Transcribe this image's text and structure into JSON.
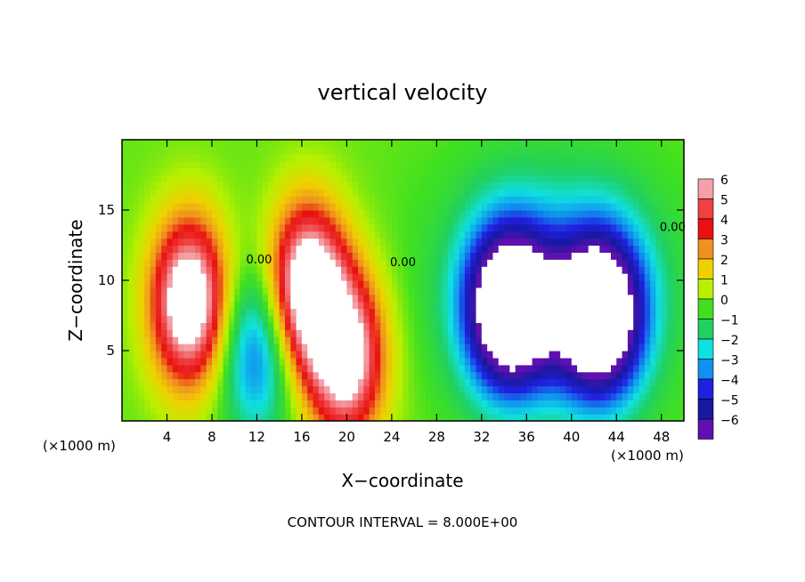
{
  "chart_data": {
    "type": "heatmap",
    "title": "vertical velocity",
    "xlabel": "X−coordinate",
    "ylabel": "Z−coordinate",
    "x_unit_left": "(×1000 m)",
    "x_unit_right": "(×1000 m)",
    "footer": "CONTOUR INTERVAL = 8.000E+00",
    "xlim": [
      0,
      50
    ],
    "ylim": [
      0,
      20
    ],
    "x_ticks": [
      4,
      8,
      12,
      16,
      20,
      24,
      28,
      32,
      36,
      40,
      44,
      48
    ],
    "x_tick_labels": [
      "4",
      "8",
      "12",
      "16",
      "20",
      "24",
      "28",
      "32",
      "36",
      "40",
      "44",
      "48"
    ],
    "y_ticks": [
      5,
      10,
      15
    ],
    "y_tick_labels": [
      "5",
      "10",
      "15"
    ],
    "colorbar": {
      "levels": [
        6,
        5,
        4,
        3,
        2,
        1,
        0,
        -1,
        -2,
        -3,
        -4,
        -5,
        -6
      ],
      "labels": [
        "6",
        "5",
        "4",
        "3",
        "2",
        "1",
        "0",
        "−1",
        "−2",
        "−3",
        "−4",
        "−5",
        "−6"
      ],
      "colors": [
        "#f4a0a8",
        "#f04040",
        "#e81010",
        "#f09020",
        "#f0d000",
        "#b8f000",
        "#40e020",
        "#20d060",
        "#10e0e0",
        "#1090f0",
        "#2020e0",
        "#1818a0",
        "#6010b0"
      ]
    },
    "contour_labels": [
      {
        "text": "0.00",
        "x": 12.2,
        "z": 11.2
      },
      {
        "text": "0.00",
        "x": 25.0,
        "z": 11.0
      },
      {
        "text": "0.00",
        "x": 49.0,
        "z": 13.5
      }
    ],
    "features": [
      {
        "sign": "positive",
        "center_x": 6.0,
        "center_z": 8.5,
        "peak": 8
      },
      {
        "sign": "negative",
        "center_x": 12.0,
        "center_z": 5.0,
        "peak": -4
      },
      {
        "sign": "positive",
        "center_x": 16.5,
        "center_z": 9.5,
        "peak": 8
      },
      {
        "sign": "positive",
        "center_x": 20.0,
        "center_z": 4.5,
        "peak": 7
      },
      {
        "sign": "negative",
        "center_x": 34.5,
        "center_z": 8.0,
        "peak": -9
      },
      {
        "sign": "negative",
        "center_x": 42.5,
        "center_z": 7.5,
        "peak": -9
      }
    ]
  }
}
